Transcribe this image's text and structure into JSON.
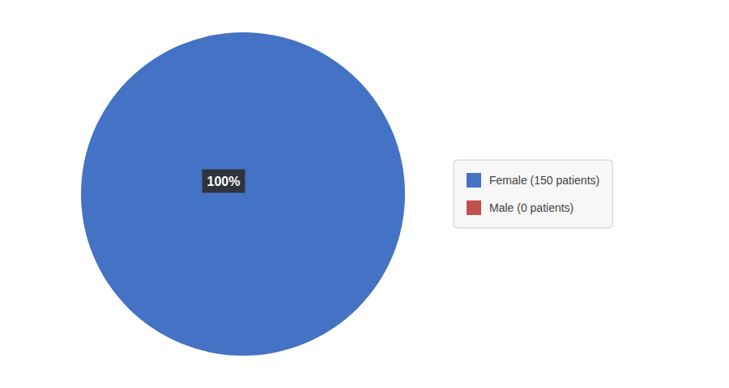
{
  "chart_data": {
    "type": "pie",
    "categories": [
      "Female (150 patients)",
      "Male (0 patients)"
    ],
    "values": [
      150,
      0.0001
    ],
    "colors": [
      "#4472C4",
      "#C0504D"
    ],
    "annotation": "100%",
    "legend": "right"
  }
}
